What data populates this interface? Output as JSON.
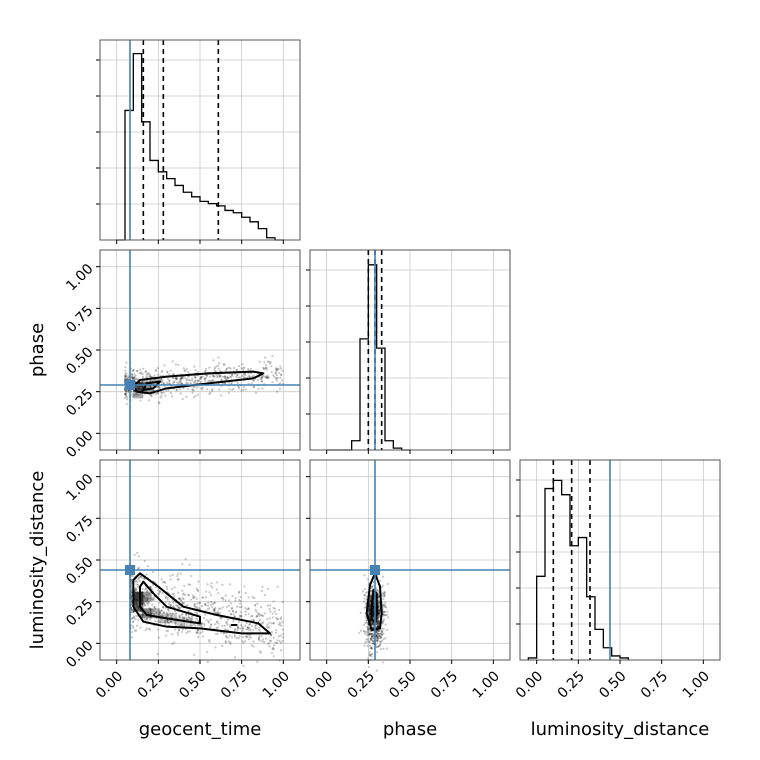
{
  "chart_data": {
    "type": "corner",
    "parameters": [
      "geocent_time",
      "phase",
      "luminosity_distance"
    ],
    "range": [
      -0.1,
      1.1
    ],
    "ticks": [
      0.0,
      0.25,
      0.5,
      0.75,
      1.0
    ],
    "tick_labels": [
      "0.00",
      "0.25",
      "0.50",
      "0.75",
      "1.00"
    ],
    "truths": {
      "geocent_time": 0.08,
      "phase": 0.29,
      "luminosity_distance": 0.44
    },
    "truth_color": "#4682b4",
    "grid": true,
    "histograms": [
      {
        "parameter": "geocent_time",
        "bin_edges": [
          0.0,
          0.05,
          0.1,
          0.15,
          0.2,
          0.25,
          0.3,
          0.35,
          0.4,
          0.45,
          0.5,
          0.55,
          0.6,
          0.65,
          0.7,
          0.75,
          0.8,
          0.85,
          0.9,
          0.95,
          1.0
        ],
        "counts": [
          0.0,
          0.57,
          0.82,
          0.52,
          0.35,
          0.3,
          0.27,
          0.24,
          0.21,
          0.19,
          0.17,
          0.16,
          0.15,
          0.13,
          0.12,
          0.1,
          0.08,
          0.05,
          0.01,
          0.0
        ],
        "ymax": 0.88,
        "quantiles": [
          0.16,
          0.28,
          0.61
        ]
      },
      {
        "parameter": "phase",
        "bin_edges": [
          0.0,
          0.05,
          0.1,
          0.15,
          0.2,
          0.25,
          0.3,
          0.35,
          0.4,
          0.45,
          0.5
        ],
        "counts": [
          0.0,
          0.0,
          0.0,
          0.05,
          0.6,
          1.0,
          0.55,
          0.05,
          0.01,
          0.0
        ],
        "ymax": 1.08,
        "quantiles": [
          0.25,
          0.29,
          0.33
        ]
      },
      {
        "parameter": "luminosity_distance",
        "bin_edges": [
          -0.05,
          0.0,
          0.05,
          0.1,
          0.15,
          0.2,
          0.25,
          0.3,
          0.35,
          0.4,
          0.45,
          0.5,
          0.55
        ],
        "counts": [
          0.01,
          0.41,
          0.84,
          0.88,
          0.81,
          0.56,
          0.6,
          0.31,
          0.15,
          0.06,
          0.02,
          0.01
        ],
        "ymax": 0.98,
        "quantiles": [
          0.1,
          0.21,
          0.32
        ]
      }
    ],
    "scatter_panels": [
      {
        "x_param": "geocent_time",
        "y_param": "phase",
        "samples": {
          "x_range": [
            0.05,
            1.0
          ],
          "y_center": 0.29,
          "y_slope": 0.07,
          "y_spread": 0.045,
          "count": 700
        },
        "contours": [
          [
            [
              0.1,
              0.28
            ],
            [
              0.14,
              0.32
            ],
            [
              0.3,
              0.34
            ],
            [
              0.55,
              0.36
            ],
            [
              0.82,
              0.37
            ],
            [
              0.88,
              0.36
            ],
            [
              0.82,
              0.33
            ],
            [
              0.55,
              0.3
            ],
            [
              0.3,
              0.27
            ],
            [
              0.2,
              0.24
            ],
            [
              0.12,
              0.25
            ]
          ],
          [
            [
              0.16,
              0.26
            ],
            [
              0.18,
              0.3
            ],
            [
              0.26,
              0.31
            ],
            [
              0.22,
              0.27
            ]
          ]
        ],
        "density_cells": [
          [
            0.13,
            0.28,
            0.7
          ],
          [
            0.18,
            0.28,
            0.5
          ],
          [
            0.13,
            0.24,
            0.4
          ],
          [
            0.23,
            0.3,
            0.25
          ]
        ]
      },
      {
        "x_param": "geocent_time",
        "y_param": "luminosity_distance",
        "samples": {
          "x_range": [
            0.08,
            1.0
          ],
          "y_start": 0.28,
          "y_end": 0.08,
          "y_spread": 0.09,
          "count": 900
        },
        "contours": [
          [
            [
              0.1,
              0.38
            ],
            [
              0.14,
              0.42
            ],
            [
              0.25,
              0.34
            ],
            [
              0.4,
              0.22
            ],
            [
              0.6,
              0.17
            ],
            [
              0.85,
              0.12
            ],
            [
              0.92,
              0.06
            ],
            [
              0.75,
              0.06
            ],
            [
              0.5,
              0.09
            ],
            [
              0.3,
              0.1
            ],
            [
              0.16,
              0.13
            ],
            [
              0.1,
              0.22
            ]
          ],
          [
            [
              0.14,
              0.34
            ],
            [
              0.16,
              0.37
            ],
            [
              0.22,
              0.3
            ],
            [
              0.3,
              0.22
            ],
            [
              0.5,
              0.16
            ],
            [
              0.5,
              0.12
            ],
            [
              0.3,
              0.15
            ],
            [
              0.18,
              0.17
            ],
            [
              0.14,
              0.22
            ]
          ],
          [
            [
              0.69,
              0.11
            ],
            [
              0.72,
              0.11
            ]
          ]
        ],
        "density_cells": [
          [
            0.13,
            0.28,
            0.85
          ],
          [
            0.13,
            0.22,
            0.7
          ],
          [
            0.18,
            0.18,
            0.55
          ],
          [
            0.18,
            0.28,
            0.45
          ],
          [
            0.23,
            0.18,
            0.35
          ],
          [
            0.28,
            0.15,
            0.3
          ],
          [
            0.33,
            0.15,
            0.25
          ],
          [
            0.38,
            0.13,
            0.22
          ],
          [
            0.43,
            0.13,
            0.18
          ]
        ]
      },
      {
        "x_param": "phase",
        "y_param": "luminosity_distance",
        "samples": {
          "x_range": [
            0.22,
            0.42
          ],
          "y_center": 0.15,
          "y_spread": 0.1,
          "count": 700
        },
        "contours": [
          [
            [
              0.24,
              0.18
            ],
            [
              0.26,
              0.35
            ],
            [
              0.29,
              0.42
            ],
            [
              0.32,
              0.34
            ],
            [
              0.33,
              0.18
            ],
            [
              0.32,
              0.09
            ],
            [
              0.27,
              0.08
            ]
          ],
          [
            [
              0.27,
              0.2
            ],
            [
              0.28,
              0.32
            ],
            [
              0.3,
              0.3
            ],
            [
              0.3,
              0.18
            ],
            [
              0.29,
              0.13
            ],
            [
              0.27,
              0.14
            ]
          ]
        ],
        "density_cells": [
          [
            0.28,
            0.2,
            0.75
          ],
          [
            0.28,
            0.26,
            0.55
          ],
          [
            0.28,
            0.14,
            0.5
          ],
          [
            0.31,
            0.2,
            0.35
          ]
        ]
      }
    ]
  }
}
